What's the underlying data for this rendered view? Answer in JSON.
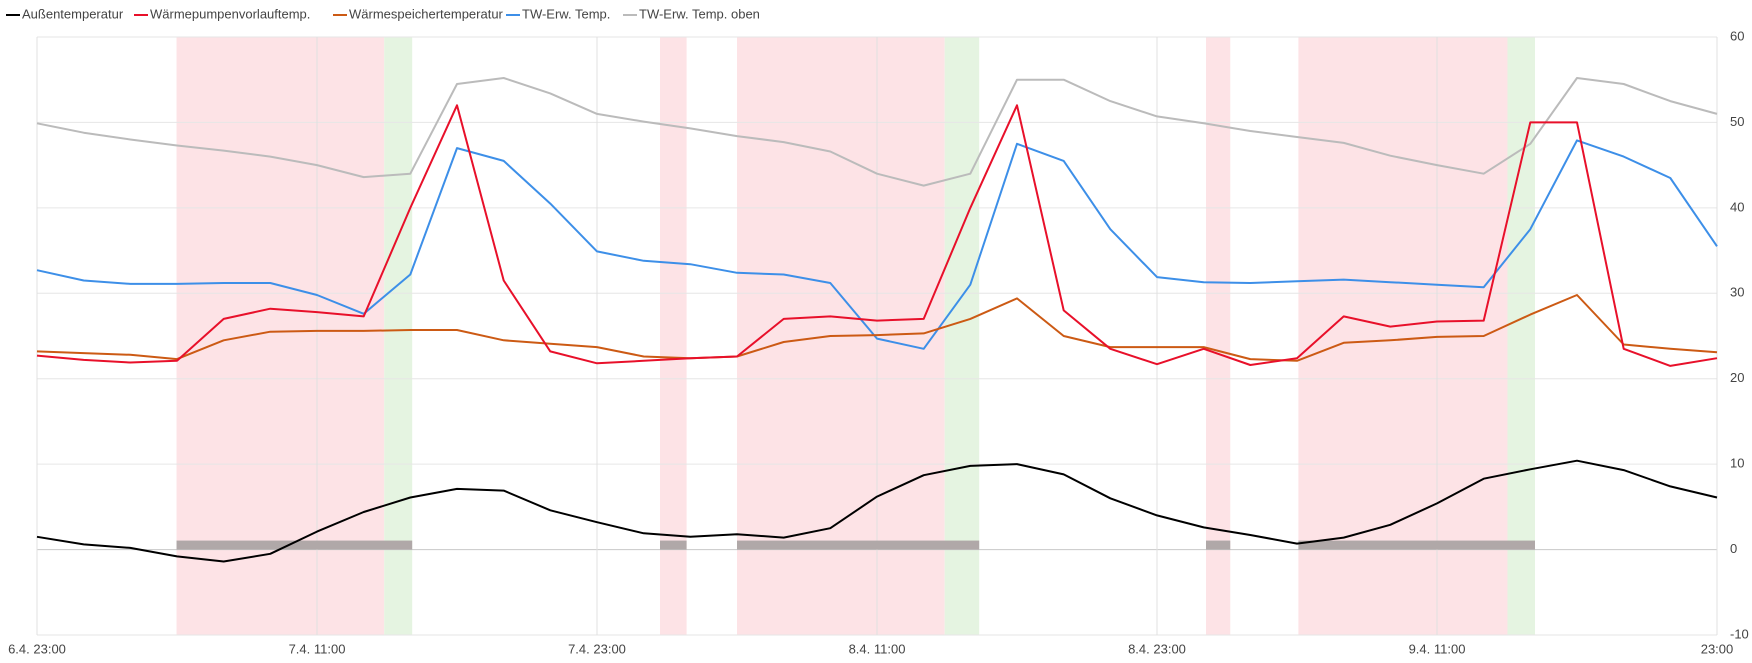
{
  "chart_data": {
    "type": "line",
    "categories": [
      "6.4. 23:00",
      null,
      null,
      null,
      null,
      null,
      "7.4. 11:00",
      null,
      null,
      null,
      null,
      null,
      "7.4. 23:00",
      null,
      null,
      null,
      null,
      null,
      "8.4. 11:00",
      null,
      null,
      null,
      null,
      null,
      "8.4. 23:00",
      null,
      null,
      null,
      null,
      null,
      "9.4. 11:00",
      null,
      null,
      null,
      null,
      null,
      "23:00"
    ],
    "series": [
      {
        "name": "Außentemperatur",
        "color": "#000000",
        "values": [
          1.5,
          0.6,
          0.2,
          -0.8,
          -1.4,
          -0.5,
          2.1,
          4.4,
          6.1,
          7.1,
          6.9,
          4.6,
          3.2,
          1.9,
          1.5,
          1.8,
          1.4,
          2.5,
          6.2,
          8.7,
          9.8,
          10.0,
          8.8,
          6.0,
          4.0,
          2.6,
          1.7,
          0.7,
          1.4,
          2.9,
          5.4,
          8.3,
          9.4,
          10.4,
          9.3,
          7.4,
          6.1
        ]
      },
      {
        "name": "Wärmepumpenvorlauftemp.",
        "color": "#e8102a",
        "values": [
          22.7,
          22.2,
          21.9,
          22.1,
          27.0,
          28.2,
          27.8,
          27.3,
          40.0,
          52.0,
          31.5,
          23.2,
          21.8,
          22.1,
          22.4,
          22.6,
          27.0,
          27.3,
          26.8,
          27.0,
          40.0,
          52.0,
          28.0,
          23.5,
          21.7,
          23.5,
          21.6,
          22.4,
          27.3,
          26.1,
          26.7,
          26.8,
          50.0,
          50.0,
          23.5,
          21.5,
          22.4
        ]
      },
      {
        "name": "Wärmespeichertemperatur",
        "color": "#cc5a14",
        "values": [
          23.2,
          23.0,
          22.8,
          22.3,
          24.5,
          25.5,
          25.6,
          25.6,
          25.7,
          25.7,
          24.5,
          24.1,
          23.7,
          22.6,
          22.4,
          22.6,
          24.3,
          25.0,
          25.1,
          25.3,
          27.0,
          29.4,
          25.0,
          23.7,
          23.7,
          23.7,
          22.3,
          22.1,
          24.2,
          24.5,
          24.9,
          25.0,
          27.5,
          29.8,
          24.0,
          23.5,
          23.1
        ]
      },
      {
        "name": "TW-Erw. Temp.",
        "color": "#3d8fe8",
        "values": [
          32.7,
          31.5,
          31.1,
          31.1,
          31.2,
          31.2,
          29.8,
          27.6,
          32.2,
          47.0,
          45.5,
          40.5,
          34.9,
          33.8,
          33.4,
          32.4,
          32.2,
          31.2,
          24.7,
          23.5,
          31.0,
          47.5,
          45.5,
          37.5,
          31.9,
          31.3,
          31.2,
          31.4,
          31.6,
          31.3,
          31.0,
          30.7,
          37.5,
          47.9,
          46.0,
          43.5,
          35.5
        ]
      },
      {
        "name": "TW-Erw. Temp. oben",
        "color": "#000000",
        "values": [
          49.9,
          48.8,
          48.0,
          47.3,
          46.7,
          46.0,
          45.0,
          43.6,
          44.0,
          54.5,
          55.2,
          53.4,
          51.0,
          50.1,
          49.3,
          48.4,
          47.7,
          46.6,
          44.0,
          42.6,
          44.0,
          55.0,
          55.0,
          52.5,
          50.7,
          49.9,
          49.0,
          48.3,
          47.6,
          46.1,
          45.0,
          44.0,
          47.5,
          55.2,
          54.5,
          52.5,
          51.0
        ]
      }
    ],
    "line_color_override": {
      "4": "#bbbbbb"
    },
    "bands": [
      {
        "from": 2.99,
        "to": 7.44,
        "color": "#fde3e6"
      },
      {
        "from": 7.44,
        "to": 8.04,
        "color": "#e5f4e1"
      },
      {
        "from": 13.35,
        "to": 13.92,
        "color": "#fde3e6"
      },
      {
        "from": 15.0,
        "to": 19.45,
        "color": "#fde3e6"
      },
      {
        "from": 19.45,
        "to": 20.19,
        "color": "#e5f4e1"
      },
      {
        "from": 25.05,
        "to": 25.57,
        "color": "#fde3e6"
      },
      {
        "from": 27.03,
        "to": 31.51,
        "color": "#fde3e6"
      },
      {
        "from": 31.51,
        "to": 32.1,
        "color": "#e5f4e1"
      }
    ],
    "status_bars": [
      {
        "from": 2.99,
        "to": 8.04
      },
      {
        "from": 13.35,
        "to": 13.92
      },
      {
        "from": 15.0,
        "to": 20.19
      },
      {
        "from": 25.05,
        "to": 25.57
      },
      {
        "from": 27.03,
        "to": 32.1
      }
    ],
    "status_color": "#b0a8a8",
    "ylim": [
      -10,
      60
    ],
    "yticks": [
      -10,
      0,
      10,
      20,
      30,
      40,
      50,
      60
    ],
    "grid": true
  }
}
